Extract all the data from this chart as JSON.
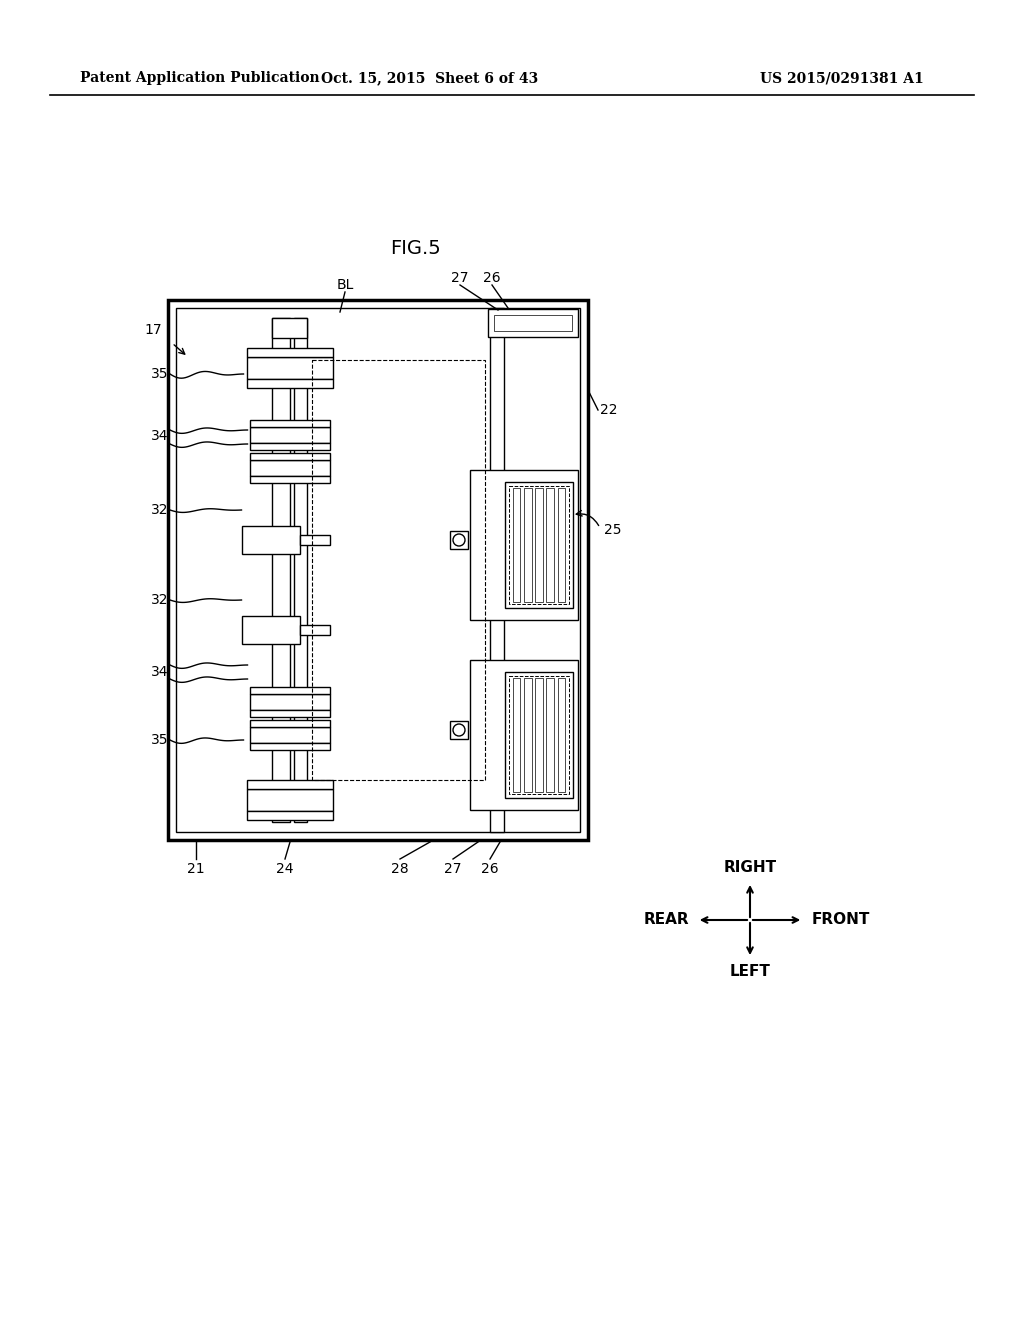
{
  "bg_color": "#ffffff",
  "header_left": "Patent Application Publication",
  "header_mid": "Oct. 15, 2015  Sheet 6 of 43",
  "header_right": "US 2015/0291381 A1",
  "fig_title": "FIG.5"
}
